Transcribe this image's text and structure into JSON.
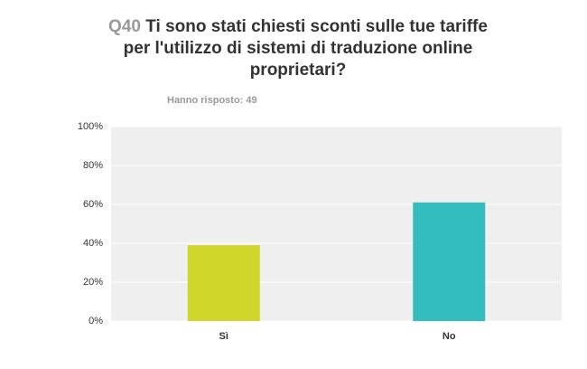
{
  "chart_data": {
    "type": "bar",
    "question_number": "Q40",
    "title": "Ti sono stati chiesti sconti sulle tue tariffe per l'utilizzo di sistemi di traduzione online proprietari?",
    "subtitle": "Hanno risposto: 49",
    "categories": [
      "Sì",
      "No"
    ],
    "values": [
      39,
      61
    ],
    "colors": [
      "#d1d62b",
      "#33bdbf"
    ],
    "ylim": [
      0,
      100
    ],
    "yticks": [
      {
        "value": 0,
        "label": "0%"
      },
      {
        "value": 20,
        "label": "20%"
      },
      {
        "value": 40,
        "label": "40%"
      },
      {
        "value": 60,
        "label": "60%"
      },
      {
        "value": 80,
        "label": "80%"
      },
      {
        "value": 100,
        "label": "100%"
      }
    ],
    "grid": true
  }
}
